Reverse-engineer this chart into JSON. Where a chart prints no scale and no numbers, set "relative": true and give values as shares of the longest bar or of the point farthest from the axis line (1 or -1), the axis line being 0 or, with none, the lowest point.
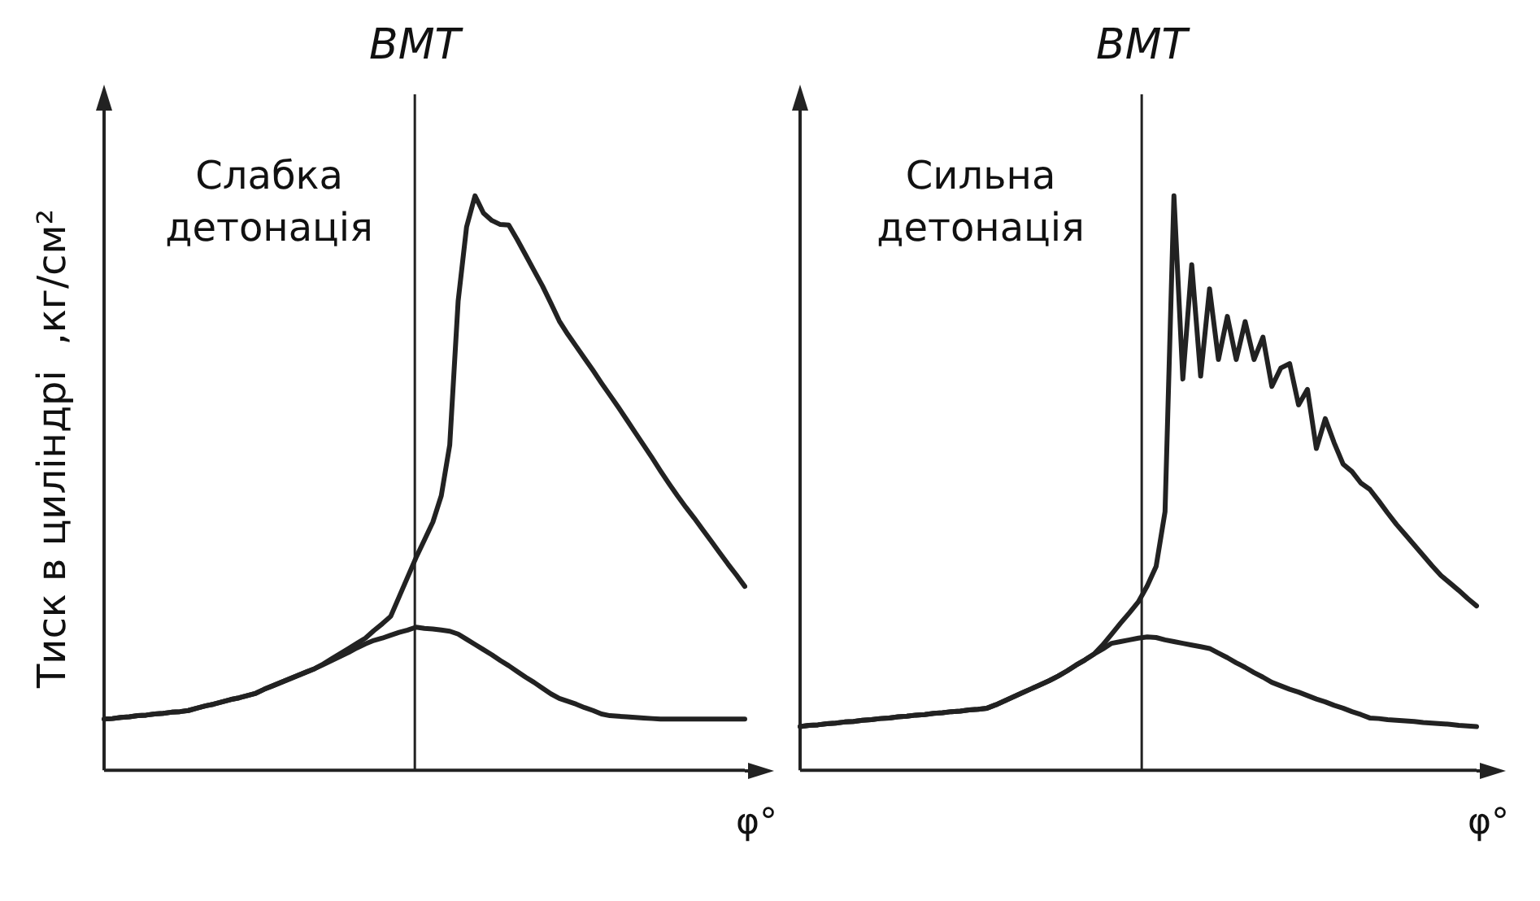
{
  "chart_data": [
    {
      "type": "line",
      "relative": true,
      "ylabel": "Тиск в циліндрі  ,кг/см²",
      "xlabel": "φ°",
      "grid": false,
      "legend": false,
      "marker": "none",
      "annotations": [
        "ВМТ",
        "Слабка детонація"
      ],
      "categories": [
        null,
        null,
        null,
        null,
        null,
        null,
        null,
        null,
        null,
        null,
        null,
        null,
        null,
        null,
        null,
        null,
        null,
        null,
        null,
        null,
        null,
        null,
        null,
        null,
        null,
        null,
        null,
        null,
        null,
        null,
        null,
        null,
        null,
        null,
        null,
        null,
        null,
        null,
        null,
        null,
        null,
        null,
        null,
        null,
        null,
        null,
        null,
        null,
        null,
        null,
        null,
        null,
        null,
        null,
        null,
        null,
        null,
        null,
        null,
        null,
        null,
        null,
        null,
        null,
        null,
        null,
        null,
        null,
        null,
        null,
        null,
        null,
        null,
        null,
        null,
        null,
        null
      ],
      "series": [
        {
          "color": "#222222",
          "values": [
            0.089,
            0.09,
            0.092,
            0.093,
            0.095,
            0.096,
            0.098,
            0.099,
            0.101,
            0.102,
            0.104,
            0.108,
            0.112,
            0.115,
            0.119,
            0.123,
            0.126,
            0.13,
            0.134,
            0.141,
            0.147,
            0.153,
            0.159,
            0.165,
            0.171,
            0.177,
            0.184,
            0.191,
            0.198,
            0.205,
            0.213,
            0.22,
            0.226,
            0.23,
            0.235,
            0.24,
            0.244,
            0.249,
            0.247,
            0.246,
            0.244,
            0.242,
            0.237,
            0.228,
            0.219,
            0.21,
            0.201,
            0.191,
            0.182,
            0.172,
            0.162,
            0.153,
            0.143,
            0.133,
            0.125,
            0.12,
            0.115,
            0.109,
            0.104,
            0.098,
            0.095,
            0.094,
            0.093,
            0.092,
            0.091,
            0.09,
            0.089,
            0.089,
            0.089,
            0.089,
            0.089,
            0.089,
            0.089,
            0.089,
            0.089,
            0.089,
            0.089
          ]
        },
        {
          "color": "#222222",
          "values": [
            0.089,
            0.09,
            0.092,
            0.093,
            0.095,
            0.096,
            0.098,
            0.099,
            0.101,
            0.102,
            0.104,
            0.108,
            0.112,
            0.115,
            0.119,
            0.123,
            0.126,
            0.13,
            0.134,
            0.141,
            0.147,
            0.153,
            0.159,
            0.165,
            0.171,
            0.177,
            0.185,
            0.194,
            0.203,
            0.212,
            0.221,
            0.23,
            0.243,
            0.255,
            0.268,
            0.302,
            0.336,
            0.37,
            0.401,
            0.432,
            0.478,
            0.566,
            0.817,
            0.946,
            1,
            0.97,
            0.957,
            0.95,
            0.949,
            0.924,
            0.897,
            0.87,
            0.843,
            0.813,
            0.782,
            0.759,
            0.738,
            0.717,
            0.696,
            0.674,
            0.653,
            0.632,
            0.61,
            0.588,
            0.566,
            0.544,
            0.521,
            0.499,
            0.478,
            0.458,
            0.439,
            0.419,
            0.399,
            0.379,
            0.359,
            0.34,
            0.32
          ]
        }
      ]
    },
    {
      "type": "line",
      "relative": true,
      "xlabel": "φ°",
      "grid": false,
      "legend": false,
      "marker": "none",
      "annotations": [
        "ВМТ",
        "Сильна детонація"
      ],
      "categories": [
        null,
        null,
        null,
        null,
        null,
        null,
        null,
        null,
        null,
        null,
        null,
        null,
        null,
        null,
        null,
        null,
        null,
        null,
        null,
        null,
        null,
        null,
        null,
        null,
        null,
        null,
        null,
        null,
        null,
        null,
        null,
        null,
        null,
        null,
        null,
        null,
        null,
        null,
        null,
        null,
        null,
        null,
        null,
        null,
        null,
        null,
        null,
        null,
        null,
        null,
        null,
        null,
        null,
        null,
        null,
        null,
        null,
        null,
        null,
        null,
        null,
        null,
        null,
        null,
        null,
        null,
        null,
        null,
        null,
        null,
        null,
        null,
        null,
        null,
        null,
        null,
        null
      ],
      "series": [
        {
          "color": "#222222",
          "values": [
            0.076,
            0.078,
            0.079,
            0.081,
            0.082,
            0.084,
            0.085,
            0.087,
            0.088,
            0.09,
            0.091,
            0.093,
            0.094,
            0.096,
            0.097,
            0.099,
            0.1,
            0.102,
            0.103,
            0.105,
            0.106,
            0.108,
            0.114,
            0.121,
            0.128,
            0.135,
            0.142,
            0.149,
            0.156,
            0.164,
            0.173,
            0.183,
            0.192,
            0.202,
            0.211,
            0.221,
            0.224,
            0.227,
            0.23,
            0.232,
            0.231,
            0.227,
            0.224,
            0.221,
            0.218,
            0.215,
            0.212,
            0.204,
            0.196,
            0.187,
            0.179,
            0.17,
            0.162,
            0.153,
            0.147,
            0.141,
            0.136,
            0.13,
            0.124,
            0.119,
            0.113,
            0.108,
            0.102,
            0.097,
            0.091,
            0.09,
            0.088,
            0.087,
            0.086,
            0.085,
            0.083,
            0.082,
            0.081,
            0.08,
            0.078,
            0.077,
            0.076
          ]
        },
        {
          "color": "#222222",
          "values": [
            0.076,
            0.078,
            0.079,
            0.081,
            0.082,
            0.084,
            0.085,
            0.087,
            0.088,
            0.09,
            0.091,
            0.093,
            0.094,
            0.096,
            0.097,
            0.099,
            0.1,
            0.102,
            0.103,
            0.105,
            0.106,
            0.108,
            0.114,
            0.121,
            0.128,
            0.135,
            0.142,
            0.149,
            0.156,
            0.164,
            0.173,
            0.183,
            0.192,
            0.202,
            0.218,
            0.237,
            0.256,
            0.274,
            0.293,
            0.321,
            0.355,
            0.45,
            1,
            0.681,
            0.88,
            0.686,
            0.838,
            0.715,
            0.79,
            0.715,
            0.781,
            0.715,
            0.754,
            0.668,
            0.7,
            0.708,
            0.636,
            0.663,
            0.56,
            0.612,
            0.57,
            0.533,
            0.52,
            0.5,
            0.489,
            0.469,
            0.448,
            0.428,
            0.41,
            0.392,
            0.374,
            0.356,
            0.339,
            0.326,
            0.313,
            0.299,
            0.286
          ]
        }
      ]
    }
  ]
}
